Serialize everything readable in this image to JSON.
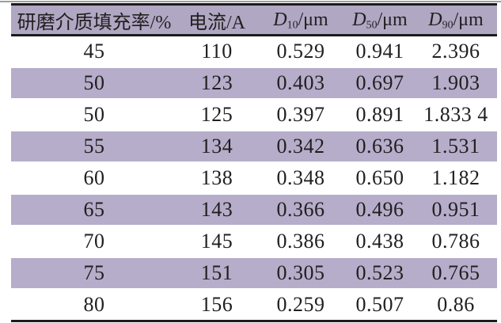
{
  "table": {
    "headers": [
      {
        "label": "研磨介质填充率/%"
      },
      {
        "label": "电流/A"
      },
      {
        "symbol": "D",
        "sub": "10",
        "unit": "/μm"
      },
      {
        "symbol": "D",
        "sub": "50",
        "unit": "/μm"
      },
      {
        "symbol": "D",
        "sub": "90",
        "unit": "/μm"
      }
    ],
    "rows": [
      [
        "45",
        "110",
        "0.529",
        "0.941",
        "2.396"
      ],
      [
        "50",
        "123",
        "0.403",
        "0.697",
        "1.903"
      ],
      [
        "50",
        "125",
        "0.397",
        "0.891",
        "1.833 4"
      ],
      [
        "55",
        "134",
        "0.342",
        "0.636",
        "1.531"
      ],
      [
        "60",
        "138",
        "0.348",
        "0.650",
        "1.182"
      ],
      [
        "65",
        "143",
        "0.366",
        "0.496",
        "0.951"
      ],
      [
        "70",
        "145",
        "0.386",
        "0.438",
        "0.786"
      ],
      [
        "75",
        "151",
        "0.305",
        "0.523",
        "0.765"
      ],
      [
        "80",
        "156",
        "0.259",
        "0.507",
        "0.86"
      ]
    ],
    "colors": {
      "header_bg": "#b0a7c3",
      "shaded_row_bg": "#b6adca",
      "rule": "#1b1b1b",
      "text": "#1f1f1f",
      "scan_line": "#9e9e9e"
    }
  }
}
